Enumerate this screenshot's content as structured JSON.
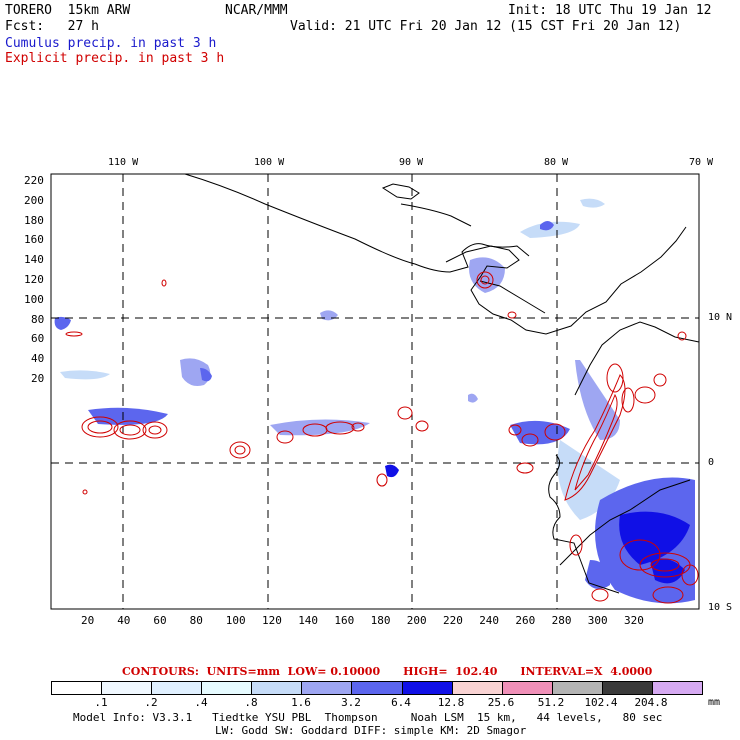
{
  "header": {
    "model": "TORERO  15km ARW",
    "org": "NCAR/MMM",
    "init": "Init: 18 UTC Thu 19 Jan 12",
    "fcst": "Fcst:   27 h",
    "valid": "Valid: 21 UTC Fri 20 Jan 12 (15 CST Fri 20 Jan 12)",
    "cumulus_label": "Cumulus precip. in past 3 h",
    "explicit_label": "Explicit precip. in past 3 h",
    "cumulus_color": "#1a1acc",
    "explicit_color": "#d00000"
  },
  "map": {
    "top_labels": [
      "110 W",
      "100 W",
      "90 W",
      "80 W",
      "70 W"
    ],
    "right_labels": [
      "10 N",
      "0",
      "10 S"
    ],
    "x_ticks": [
      "20",
      "40",
      "60",
      "80",
      "100",
      "120",
      "140",
      "160",
      "180",
      "200",
      "220",
      "240",
      "260",
      "280",
      "300",
      "320"
    ],
    "y_ticks": [
      "220",
      "200",
      "180",
      "160",
      "140",
      "120",
      "100",
      "80",
      "60",
      "40",
      "20"
    ]
  },
  "contours_line": "CONTOURS:  UNITS=mm  LOW= 0.10000      HIGH=  102.40      INTERVAL=X  4.0000",
  "colorbar": {
    "labels": [
      ".1",
      ".2",
      ".4",
      ".8",
      "1.6",
      "3.2",
      "6.4",
      "12.8",
      "25.6",
      "51.2",
      "102.4",
      "204.8"
    ],
    "colors": [
      "#ffffff",
      "#f0f8ff",
      "#e0f0ff",
      "#e6fbff",
      "#c6dcf8",
      "#9ea6f2",
      "#5c66ee",
      "#1010e6",
      "#f9d3d3",
      "#f090b8",
      "#b4b4b4",
      "#3a3a3a",
      "#d6aaf2"
    ],
    "unit": "mm"
  },
  "footer": {
    "line1": "Model Info: V3.3.1   Tiedtke YSU PBL  Thompson     Noah LSM  15 km,   44 levels,   80 sec",
    "line2": "LW: Godd SW: Goddard DIFF: simple KM: 2D Smagor"
  }
}
